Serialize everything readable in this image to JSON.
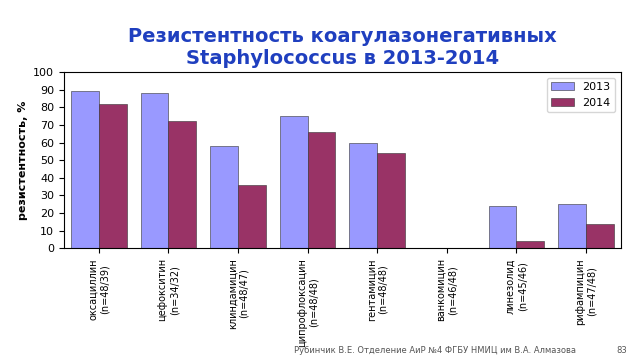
{
  "chart_data": {
    "type": "bar",
    "title": "Резистентность коагулазонегативных Staphylococcus в 2013-2014",
    "y_label": "резистентность, %",
    "categories": [
      "оксациллин\n(n=48/39)",
      "цефокситин\n(n=34/32)",
      "клиндамицин\n(n=48/47)",
      "ципрофлоксацин\n(n=48/48)",
      "гентамицин\n(n=48/48)",
      "ванкомицин\n(n=46/48)",
      "линезолид\n(n=45/46)",
      "рифампицин\n(n=47/48)"
    ],
    "series": [
      {
        "name": "2013",
        "color": "#9999ff",
        "values": [
          89,
          88,
          58,
          75,
          60,
          0,
          24,
          25
        ]
      },
      {
        "name": "2014",
        "color": "#993366",
        "values": [
          82,
          72,
          36,
          66,
          54,
          0,
          4,
          14
        ]
      }
    ],
    "ylim": [
      0,
      100
    ],
    "yticks": [
      0,
      10,
      20,
      30,
      40,
      50,
      60,
      70,
      80,
      90,
      100
    ],
    "grid": false,
    "legend": "upper right",
    "annotations": [
      "Рубинчик В.Е. Отделение АиР №4 ФГБУ НМИЦ им В.А. Алмазова",
      "83"
    ]
  }
}
